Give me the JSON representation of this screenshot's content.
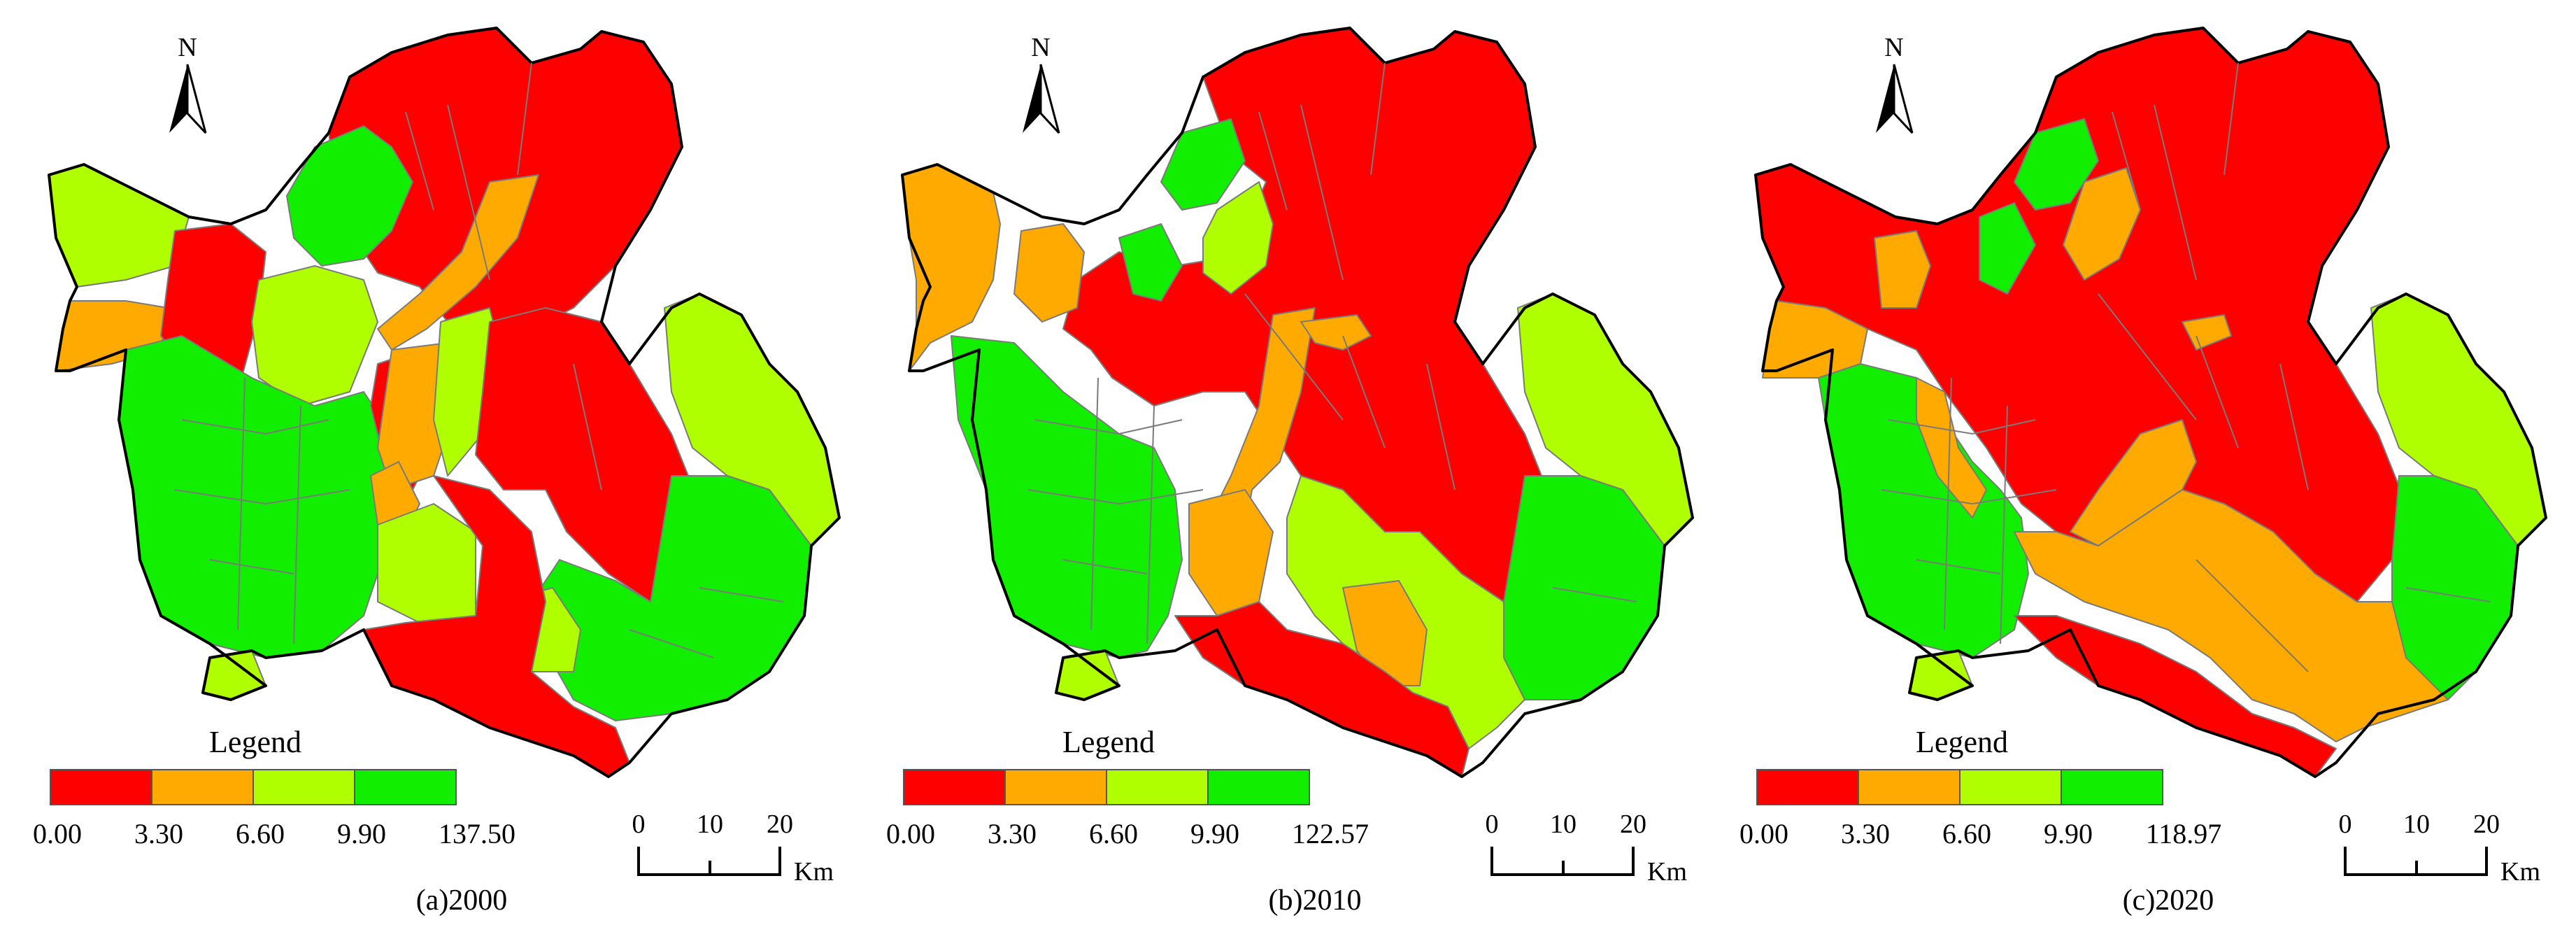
{
  "colors": {
    "class1": "#ff0000",
    "class2": "#ffaa00",
    "class3": "#b0ff00",
    "class4": "#11ee00"
  },
  "common": {
    "north": "N",
    "legend_title": "Legend",
    "scale_labels": [
      "0",
      "10",
      "20"
    ],
    "scale_unit": "Km"
  },
  "panels": [
    {
      "caption": "(a)2000",
      "legend_breaks": [
        "0.00",
        "3.30",
        "6.60",
        "9.90",
        "137.50"
      ]
    },
    {
      "caption": "(b)2010",
      "legend_breaks": [
        "0.00",
        "3.30",
        "6.60",
        "9.90",
        "122.57"
      ]
    },
    {
      "caption": "(c)2020",
      "legend_breaks": [
        "0.00",
        "3.30",
        "6.60",
        "9.90",
        "118.97"
      ]
    }
  ]
}
